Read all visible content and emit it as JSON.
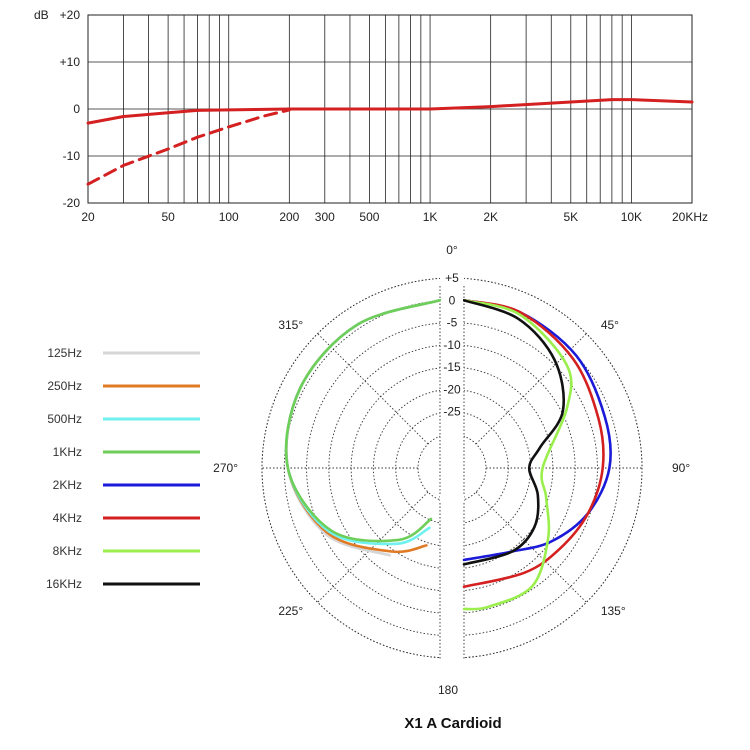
{
  "chart_data": [
    {
      "type": "line",
      "name": "frequency-response",
      "x_scale": "log",
      "xlim": [
        20,
        20000
      ],
      "ylim": [
        -20,
        20
      ],
      "ylabel": "dB",
      "y_ticks": [
        {
          "value": 20,
          "label": "+20"
        },
        {
          "value": 10,
          "label": "+10"
        },
        {
          "value": 0,
          "label": "0"
        },
        {
          "value": -10,
          "label": "-10"
        },
        {
          "value": -20,
          "label": "-20"
        }
      ],
      "x_ticks": [
        {
          "value": 20,
          "label": "20"
        },
        {
          "value": 50,
          "label": "50"
        },
        {
          "value": 100,
          "label": "100"
        },
        {
          "value": 200,
          "label": "200"
        },
        {
          "value": 300,
          "label": "300"
        },
        {
          "value": 500,
          "label": "500"
        },
        {
          "value": 1000,
          "label": "1K"
        },
        {
          "value": 2000,
          "label": "2K"
        },
        {
          "value": 5000,
          "label": "5K"
        },
        {
          "value": 10000,
          "label": "10K"
        },
        {
          "value": 20000,
          "label": "20KHz"
        }
      ],
      "series": [
        {
          "name": "response",
          "style": "solid",
          "color": "#d42020",
          "x": [
            20,
            30,
            50,
            70,
            100,
            200,
            500,
            1000,
            2000,
            5000,
            8000,
            10000,
            20000
          ],
          "y": [
            -3,
            -1.6,
            -0.8,
            -0.3,
            -0.2,
            0,
            0,
            0,
            0.5,
            1.5,
            2,
            2,
            1.5
          ]
        },
        {
          "name": "low-cut",
          "style": "dashed",
          "color": "#d42020",
          "x": [
            20,
            30,
            50,
            70,
            100,
            150,
            200
          ],
          "y": [
            -16,
            -12,
            -8.5,
            -6,
            -3.8,
            -1.5,
            -0.2
          ]
        }
      ]
    },
    {
      "type": "polar",
      "name": "polar-pattern",
      "title": "X1 A Cardioid",
      "r_unit": "dB",
      "r_range": [
        -30,
        5
      ],
      "r_ticks": [
        {
          "value": 5,
          "label": "+5"
        },
        {
          "value": 0,
          "label": "0"
        },
        {
          "value": -5,
          "label": "-5"
        },
        {
          "value": -10,
          "label": "-10"
        },
        {
          "value": -15,
          "label": "-15"
        },
        {
          "value": -20,
          "label": "-20"
        },
        {
          "value": -25,
          "label": "-25"
        }
      ],
      "angle_labels": [
        {
          "angle": 0,
          "label": "0°"
        },
        {
          "angle": 45,
          "label": "45°"
        },
        {
          "angle": 90,
          "label": "90°"
        },
        {
          "angle": 135,
          "label": "135°"
        },
        {
          "angle": 180,
          "label": "180"
        },
        {
          "angle": 225,
          "label": "225°"
        },
        {
          "angle": 270,
          "label": "270°"
        },
        {
          "angle": 315,
          "label": "315°"
        }
      ],
      "series": [
        {
          "name": "125Hz",
          "color": "#d6d6d6",
          "side": "left",
          "angles": [
            0,
            30,
            60,
            90,
            120,
            150
          ],
          "db": [
            0,
            -0.5,
            -1.5,
            -3.5,
            -8,
            -15
          ]
        },
        {
          "name": "250Hz",
          "color": "#e07b25",
          "side": "left",
          "angles": [
            0,
            30,
            60,
            90,
            120,
            150,
            170
          ],
          "db": [
            0,
            -0.5,
            -1.5,
            -3.5,
            -8.5,
            -16,
            -20
          ]
        },
        {
          "name": "500Hz",
          "color": "#6ff1ef",
          "side": "left",
          "angles": [
            0,
            30,
            60,
            90,
            120,
            150,
            170
          ],
          "db": [
            0,
            -0.5,
            -1.5,
            -3.5,
            -9,
            -18,
            -24
          ]
        },
        {
          "name": "1KHz",
          "color": "#6ece5a",
          "side": "left",
          "angles": [
            0,
            30,
            60,
            90,
            120,
            150,
            170
          ],
          "db": [
            0,
            -0.5,
            -1.5,
            -3.5,
            -9.5,
            -19,
            -26
          ]
        },
        {
          "name": "2KHz",
          "color": "#1a1ad8",
          "side": "right",
          "angles": [
            0,
            20,
            45,
            70,
            90,
            110,
            130,
            150,
            180
          ],
          "db": [
            0,
            -0.5,
            -2,
            -4,
            -5,
            -8,
            -12,
            -16,
            -17
          ]
        },
        {
          "name": "4KHz",
          "color": "#d42020",
          "side": "right",
          "angles": [
            0,
            20,
            45,
            70,
            90,
            110,
            130,
            150,
            180
          ],
          "db": [
            0,
            -0.5,
            -3,
            -5.5,
            -6.5,
            -8,
            -9.5,
            -10.5,
            -11
          ]
        },
        {
          "name": "8KHz",
          "color": "#9aef4c",
          "side": "right",
          "angles": [
            0,
            20,
            45,
            60,
            90,
            110,
            130,
            150,
            170,
            180
          ],
          "db": [
            0,
            -1,
            -5,
            -11,
            -20,
            -18,
            -13,
            -7,
            -6,
            -6
          ]
        },
        {
          "name": "16KHz",
          "color": "#111111",
          "side": "right",
          "angles": [
            0,
            20,
            40,
            60,
            75,
            90,
            110,
            130,
            150,
            180
          ],
          "db": [
            0,
            -2,
            -6,
            -12,
            -20,
            -23,
            -20,
            -17,
            -16,
            -16
          ]
        }
      ]
    }
  ]
}
